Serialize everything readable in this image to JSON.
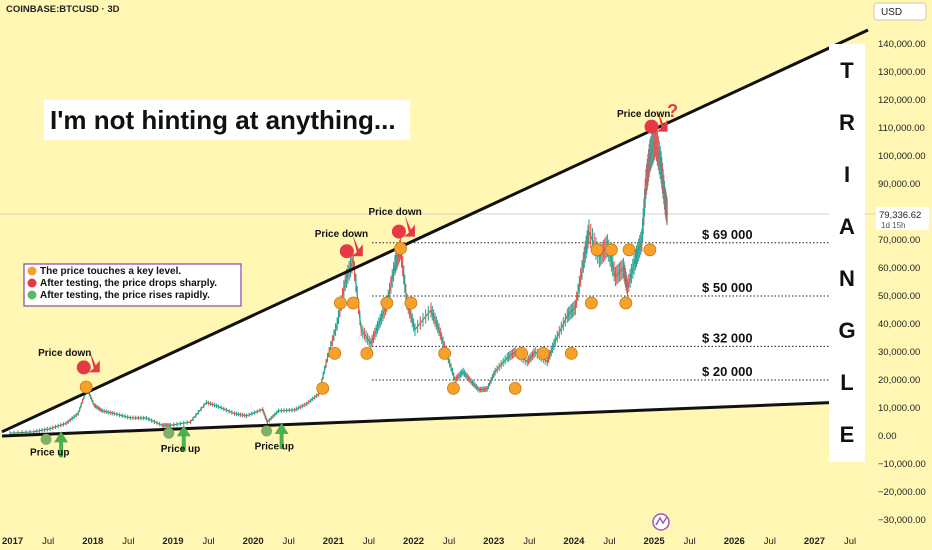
{
  "symbol": "COINBASE:BTCUSD · 3D",
  "currency": "USD",
  "hint_text": "I'm not hinting at anything...",
  "triangle_letters": [
    "T",
    "R",
    "I",
    "A",
    "N",
    "G",
    "L",
    "E"
  ],
  "price_tag": {
    "price": "79,336.62",
    "countdown": "1d 15h"
  },
  "legend": [
    {
      "color": "#f7a12b",
      "text": "The price touches a key level."
    },
    {
      "color": "#e63946",
      "text": "After testing, the price drops sharply."
    },
    {
      "color": "#5cb85c",
      "text": "After testing, the price rises rapidly."
    }
  ],
  "levels": [
    {
      "label": "$ 69 000",
      "value": 69000
    },
    {
      "label": "$ 50 000",
      "value": 50000
    },
    {
      "label": "$ 32 000",
      "value": 32000
    },
    {
      "label": "$ 20 000",
      "value": 20000
    }
  ],
  "chart_data": {
    "type": "line",
    "title": "",
    "xlabel": "",
    "ylabel": "",
    "ylim": [
      -30000,
      145000
    ],
    "xlim": [
      2016.9,
      2027.7
    ],
    "y_ticks": [
      -30000,
      -20000,
      -10000,
      0,
      10000,
      20000,
      30000,
      40000,
      50000,
      60000,
      70000,
      80000,
      90000,
      100000,
      110000,
      120000,
      130000,
      140000
    ],
    "y_tick_labels": [
      "−30,000.00",
      "−20,000.00",
      "−10,000.00",
      "0.00",
      "10,000.00",
      "20,000.00",
      "30,000.00",
      "40,000.00",
      "50,000.00",
      "60,000.00",
      "70,000.00",
      "80,000.00",
      "90,000.00",
      "100,000.00",
      "110,000.00",
      "120,000.00",
      "130,000.00",
      "140,000.00"
    ],
    "x_ticks": [
      {
        "t": 2017.0,
        "label": "2017",
        "bold": true
      },
      {
        "t": 2017.5,
        "label": "Jul",
        "bold": false
      },
      {
        "t": 2018.0,
        "label": "2018",
        "bold": true
      },
      {
        "t": 2018.5,
        "label": "Jul",
        "bold": false
      },
      {
        "t": 2019.0,
        "label": "2019",
        "bold": true
      },
      {
        "t": 2019.5,
        "label": "Jul",
        "bold": false
      },
      {
        "t": 2020.0,
        "label": "2020",
        "bold": true
      },
      {
        "t": 2020.5,
        "label": "Jul",
        "bold": false
      },
      {
        "t": 2021.0,
        "label": "2021",
        "bold": true
      },
      {
        "t": 2021.5,
        "label": "Jul",
        "bold": false
      },
      {
        "t": 2022.0,
        "label": "2022",
        "bold": true
      },
      {
        "t": 2022.5,
        "label": "Jul",
        "bold": false
      },
      {
        "t": 2023.0,
        "label": "2023",
        "bold": true
      },
      {
        "t": 2023.5,
        "label": "Jul",
        "bold": false
      },
      {
        "t": 2024.0,
        "label": "2024",
        "bold": true
      },
      {
        "t": 2024.5,
        "label": "Jul",
        "bold": false
      },
      {
        "t": 2025.0,
        "label": "2025",
        "bold": true
      },
      {
        "t": 2025.5,
        "label": "Jul",
        "bold": false
      },
      {
        "t": 2026.0,
        "label": "2026",
        "bold": true
      },
      {
        "t": 2026.5,
        "label": "Jul",
        "bold": false
      },
      {
        "t": 2027.0,
        "label": "2027",
        "bold": true
      },
      {
        "t": 2027.5,
        "label": "Jul",
        "bold": false
      }
    ],
    "price_series": [
      [
        2017.0,
        1000
      ],
      [
        2017.3,
        1500
      ],
      [
        2017.5,
        2600
      ],
      [
        2017.7,
        4500
      ],
      [
        2017.85,
        8000
      ],
      [
        2017.96,
        17000
      ],
      [
        2018.05,
        11000
      ],
      [
        2018.15,
        9000
      ],
      [
        2018.3,
        8000
      ],
      [
        2018.5,
        6500
      ],
      [
        2018.7,
        6400
      ],
      [
        2018.9,
        3800
      ],
      [
        2019.0,
        3800
      ],
      [
        2019.25,
        5000
      ],
      [
        2019.45,
        12000
      ],
      [
        2019.6,
        10500
      ],
      [
        2019.8,
        8000
      ],
      [
        2019.95,
        7200
      ],
      [
        2020.15,
        9500
      ],
      [
        2020.21,
        5000
      ],
      [
        2020.35,
        9000
      ],
      [
        2020.55,
        9300
      ],
      [
        2020.7,
        11500
      ],
      [
        2020.85,
        15000
      ],
      [
        2020.96,
        28000
      ],
      [
        2021.08,
        40000
      ],
      [
        2021.18,
        55000
      ],
      [
        2021.28,
        63000
      ],
      [
        2021.38,
        38000
      ],
      [
        2021.5,
        33000
      ],
      [
        2021.6,
        40000
      ],
      [
        2021.7,
        47000
      ],
      [
        2021.8,
        61000
      ],
      [
        2021.87,
        67000
      ],
      [
        2021.95,
        48000
      ],
      [
        2022.05,
        38000
      ],
      [
        2022.25,
        45000
      ],
      [
        2022.35,
        38000
      ],
      [
        2022.45,
        29000
      ],
      [
        2022.55,
        20000
      ],
      [
        2022.65,
        23000
      ],
      [
        2022.75,
        19500
      ],
      [
        2022.85,
        16500
      ],
      [
        2022.95,
        16800
      ],
      [
        2023.05,
        23000
      ],
      [
        2023.2,
        28000
      ],
      [
        2023.3,
        30000
      ],
      [
        2023.45,
        26500
      ],
      [
        2023.55,
        30000
      ],
      [
        2023.7,
        26500
      ],
      [
        2023.8,
        34000
      ],
      [
        2023.95,
        43000
      ],
      [
        2024.05,
        46000
      ],
      [
        2024.15,
        62000
      ],
      [
        2024.22,
        73000
      ],
      [
        2024.35,
        64000
      ],
      [
        2024.45,
        68000
      ],
      [
        2024.55,
        57000
      ],
      [
        2024.65,
        60000
      ],
      [
        2024.7,
        53000
      ],
      [
        2024.8,
        63000
      ],
      [
        2024.88,
        70000
      ],
      [
        2024.93,
        90000
      ],
      [
        2024.98,
        100000
      ],
      [
        2025.05,
        106000
      ],
      [
        2025.12,
        96000
      ],
      [
        2025.17,
        84000
      ],
      [
        2025.2,
        79300
      ]
    ],
    "trendlines": [
      {
        "name": "upper",
        "p1": [
          2016.9,
          1500
        ],
        "p2": [
          2027.7,
          145000
        ]
      },
      {
        "name": "lower",
        "p1": [
          2016.9,
          0
        ],
        "p2": [
          2027.3,
          12000
        ]
      }
    ],
    "markers": [
      {
        "t": 2017.45,
        "v": -1200,
        "type": "up"
      },
      {
        "t": 2017.95,
        "v": 17500,
        "type": "touch"
      },
      {
        "t": 2017.92,
        "v": 24500,
        "type": "down"
      },
      {
        "t": 2018.98,
        "v": 1000,
        "type": "up"
      },
      {
        "t": 2020.2,
        "v": 1800,
        "type": "up"
      },
      {
        "t": 2020.9,
        "v": 17000,
        "type": "touch"
      },
      {
        "t": 2021.05,
        "v": 29500,
        "type": "touch"
      },
      {
        "t": 2021.12,
        "v": 47500,
        "type": "touch"
      },
      {
        "t": 2021.28,
        "v": 47500,
        "type": "touch"
      },
      {
        "t": 2021.2,
        "v": 66000,
        "type": "down"
      },
      {
        "t": 2021.45,
        "v": 29500,
        "type": "touch"
      },
      {
        "t": 2021.7,
        "v": 47500,
        "type": "touch"
      },
      {
        "t": 2021.87,
        "v": 67000,
        "type": "touch"
      },
      {
        "t": 2021.85,
        "v": 73000,
        "type": "down"
      },
      {
        "t": 2022.0,
        "v": 47500,
        "type": "touch"
      },
      {
        "t": 2022.42,
        "v": 29500,
        "type": "touch"
      },
      {
        "t": 2022.53,
        "v": 17000,
        "type": "touch"
      },
      {
        "t": 2023.3,
        "v": 17000,
        "type": "touch"
      },
      {
        "t": 2023.38,
        "v": 29500,
        "type": "touch"
      },
      {
        "t": 2023.65,
        "v": 29500,
        "type": "touch"
      },
      {
        "t": 2024.0,
        "v": 29500,
        "type": "touch"
      },
      {
        "t": 2024.25,
        "v": 47500,
        "type": "touch"
      },
      {
        "t": 2024.32,
        "v": 66500,
        "type": "touch"
      },
      {
        "t": 2024.5,
        "v": 66500,
        "type": "touch"
      },
      {
        "t": 2024.68,
        "v": 47500,
        "type": "touch"
      },
      {
        "t": 2024.72,
        "v": 66500,
        "type": "touch"
      },
      {
        "t": 2024.98,
        "v": 66500,
        "type": "touch"
      },
      {
        "t": 2025.0,
        "v": 110500,
        "type": "down"
      }
    ],
    "annotations": [
      {
        "text": "Price down",
        "t": 2017.35,
        "v": 28500
      },
      {
        "text": "Price up",
        "t": 2017.25,
        "v": -7000
      },
      {
        "text": "Price up",
        "t": 2018.88,
        "v": -5800
      },
      {
        "text": "Price up",
        "t": 2020.05,
        "v": -4800
      },
      {
        "text": "Price down",
        "t": 2020.8,
        "v": 71000
      },
      {
        "text": "Price down",
        "t": 2021.47,
        "v": 79000
      },
      {
        "text": "Price down",
        "t": 2024.57,
        "v": 114000
      }
    ]
  }
}
